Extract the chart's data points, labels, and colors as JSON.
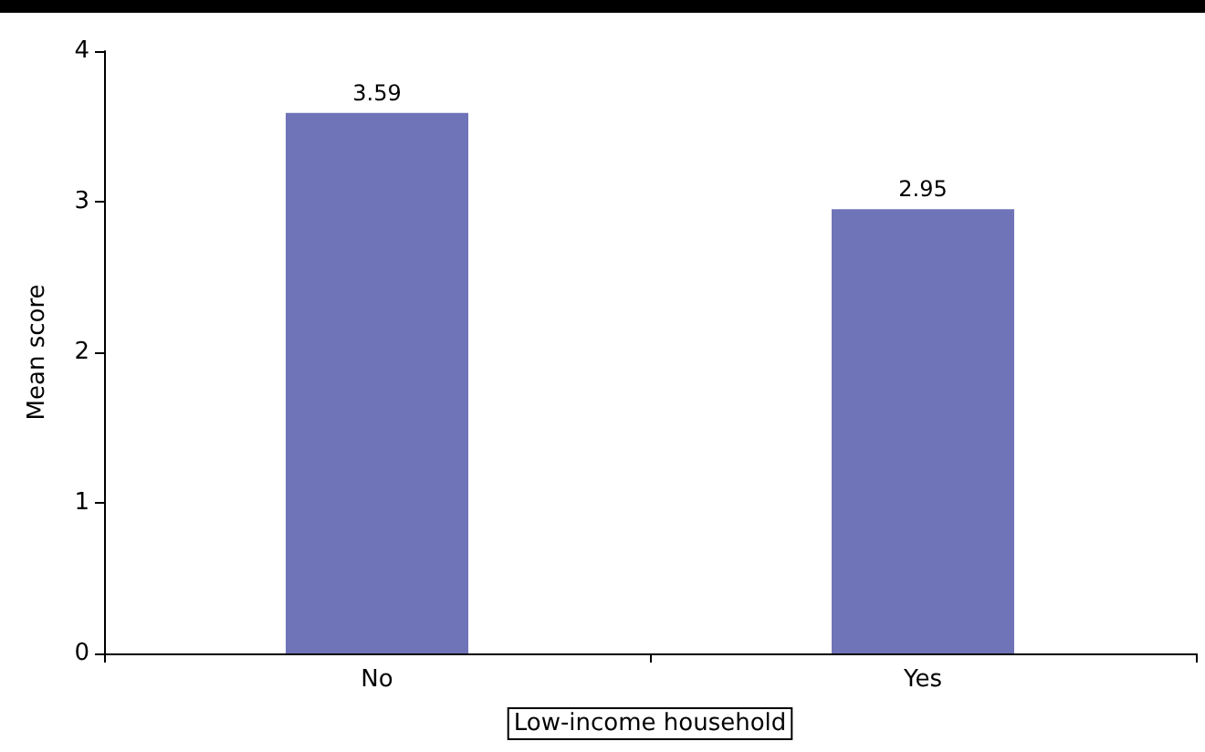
{
  "chart_data": {
    "type": "bar",
    "xlabel": "Low-income household",
    "ylabel": "Mean score",
    "categories": [
      "No",
      "Yes"
    ],
    "values": [
      3.59,
      2.95
    ],
    "color": "#6f73b8",
    "ylim": [
      0,
      4
    ],
    "yticks": [
      0,
      1,
      2,
      3,
      4
    ],
    "grid": false,
    "data_labels": true
  }
}
